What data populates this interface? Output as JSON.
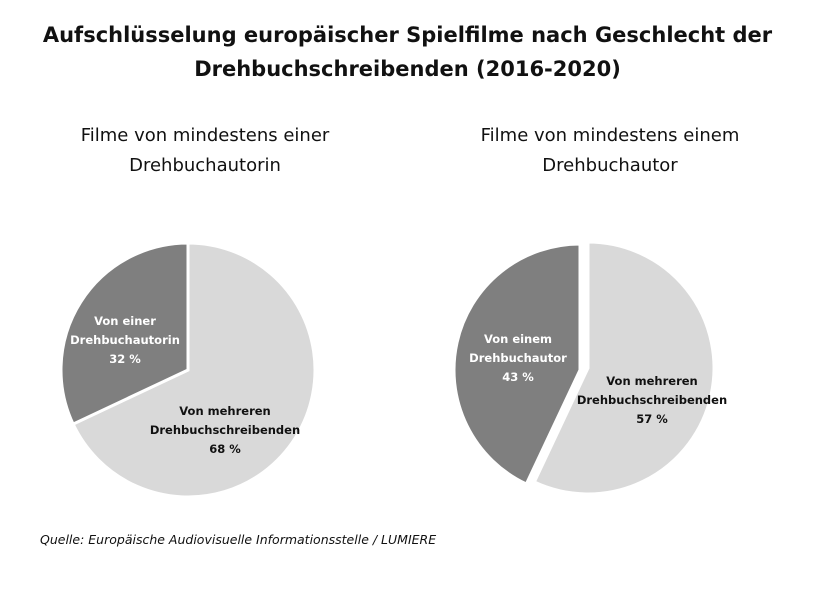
{
  "title_lines": [
    "Aufschlüsselung europäischer Spielfilme nach Geschlecht der",
    "Drehbuchschreibenden (2016-2020)"
  ],
  "source": "Quelle: Europäische Audiovisuelle Informationsstelle / LUMIERE",
  "colors": {
    "light": "#d9d9d9",
    "dark": "#7f7f7f"
  },
  "chart_data": [
    {
      "type": "pie",
      "title_lines": [
        "Filme von mindestens einer",
        "Drehbuchautorin"
      ],
      "slices": [
        {
          "label_lines": [
            "Von mehreren",
            "Drehbuchschreibenden",
            "68 %"
          ],
          "value": 68,
          "color": "#d9d9d9",
          "text_color": "#111111"
        },
        {
          "label_lines": [
            "Von einer",
            "Drehbuchautorin",
            "32 %"
          ],
          "value": 32,
          "color": "#7f7f7f",
          "text_color": "#ffffff"
        }
      ]
    },
    {
      "type": "pie",
      "title_lines": [
        "Filme von mindestens einem",
        "Drehbuchautor"
      ],
      "slices": [
        {
          "label_lines": [
            "Von mehreren",
            "Drehbuchschreibenden",
            "57 %"
          ],
          "value": 57,
          "color": "#d9d9d9",
          "text_color": "#111111"
        },
        {
          "label_lines": [
            "Von einem",
            "Drehbuchautor",
            "43 %"
          ],
          "value": 43,
          "color": "#7f7f7f",
          "text_color": "#ffffff"
        }
      ]
    }
  ]
}
